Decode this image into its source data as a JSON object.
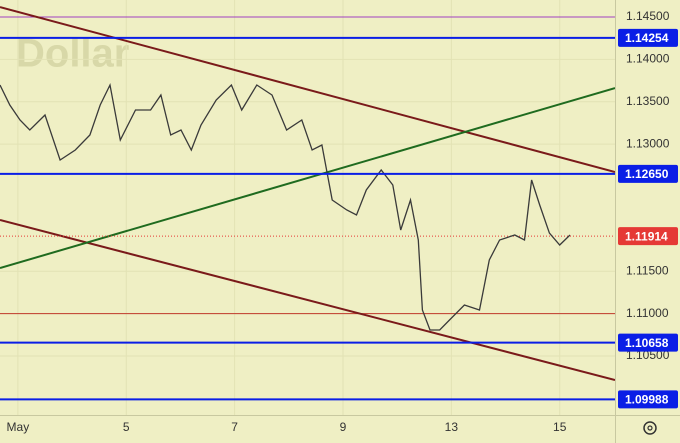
{
  "chart_data": {
    "type": "line",
    "watermark": "Dollar",
    "background": "#efefc4",
    "color": "#3a3a3a",
    "grid": true,
    "x": [
      2.67,
      2.85,
      3.04,
      3.22,
      3.5,
      3.78,
      4.06,
      4.33,
      4.52,
      4.7,
      4.89,
      5.17,
      5.45,
      5.64,
      5.82,
      6.01,
      6.2,
      6.38,
      6.66,
      6.94,
      7.13,
      7.41,
      7.69,
      7.96,
      8.24,
      8.43,
      8.61,
      8.8,
      9.14,
      9.5,
      9.86,
      10.41,
      10.84,
      11.13,
      11.49,
      11.78,
      11.93,
      12.21,
      12.57,
      12.93,
      13.24,
      13.52,
      13.7,
      13.89,
      14.17,
      14.35,
      14.48,
      14.63,
      14.81,
      15.0,
      15.19
    ],
    "values": [
      1.13698,
      1.13462,
      1.13285,
      1.13167,
      1.13344,
      1.12813,
      1.12931,
      1.13108,
      1.13462,
      1.13698,
      1.13049,
      1.13403,
      1.13403,
      1.1358,
      1.13108,
      1.13167,
      1.12931,
      1.13226,
      1.13521,
      1.13698,
      1.13403,
      1.13698,
      1.1358,
      1.13167,
      1.13285,
      1.12931,
      1.1299,
      1.12341,
      1.12223,
      1.12164,
      1.12459,
      1.12695,
      1.12518,
      1.11987,
      1.12341,
      1.11869,
      1.11043,
      1.10807,
      1.10807,
      1.10925,
      1.11102,
      1.11043,
      1.11633,
      1.11869,
      1.11928,
      1.11869,
      1.12577,
      1.12282,
      1.11951,
      1.1181,
      1.11928
    ],
    "xlim": [
      2.67,
      16.02
    ],
    "xticks": [
      {
        "value": 3,
        "label": "May"
      },
      5,
      7,
      9,
      13,
      15
    ],
    "ylim": [
      1.09804,
      1.14701
    ],
    "yticks": [
      {
        "value": 1.145,
        "label": "1.14500"
      },
      {
        "value": 1.14,
        "label": "1.14000"
      },
      {
        "value": 1.135,
        "label": "1.13500"
      },
      {
        "value": 1.13,
        "label": "1.13000"
      },
      {
        "value": 1.115,
        "label": "1.11500"
      },
      {
        "value": 1.11,
        "label": "1.11000"
      },
      {
        "value": 1.105,
        "label": "1.10500"
      }
    ],
    "hlines": [
      {
        "value": 1.145,
        "color": "#a040c0"
      },
      {
        "value": 1.11,
        "color": "#c0392b"
      }
    ],
    "levels": [
      {
        "value": 1.14254,
        "label": "1.14254",
        "color": "#0a1ee6"
      },
      {
        "value": 1.1265,
        "label": "1.12650",
        "color": "#0a1ee6"
      },
      {
        "value": 1.10658,
        "label": "1.10658",
        "color": "#0a1ee6"
      },
      {
        "value": 1.09988,
        "label": "1.09988",
        "color": "#0a1ee6"
      }
    ],
    "last": {
      "value": 1.11914,
      "label": "1.11914",
      "color": "#e53935"
    },
    "trendlines": [
      {
        "color": "#7a1a1a",
        "points": [
          [
            2.67,
            1.14618
          ],
          [
            16.02,
            1.12671
          ]
        ]
      },
      {
        "color": "#7a1a1a",
        "points": [
          [
            2.67,
            1.12105
          ],
          [
            16.02,
            1.10217
          ]
        ]
      },
      {
        "color": "#1f6b1f",
        "points": [
          [
            2.67,
            1.11538
          ],
          [
            16.02,
            1.13662
          ]
        ]
      }
    ]
  }
}
